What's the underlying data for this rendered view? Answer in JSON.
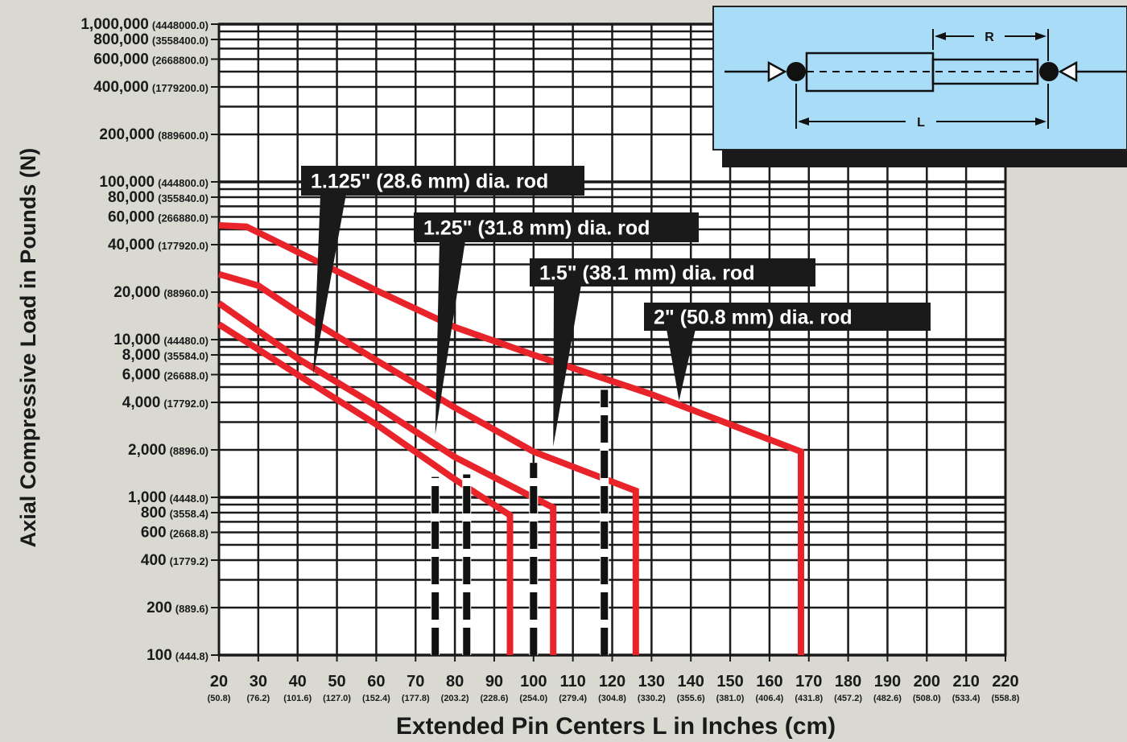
{
  "chart_data": {
    "type": "line",
    "title": "",
    "xlabel": "Extended Pin Centers L in Inches (cm)",
    "ylabel": "Axial Compressive Load in Pounds (N)",
    "xlim": [
      20,
      220
    ],
    "ylim": [
      100,
      1000000
    ],
    "y_scale": "log",
    "grid": true,
    "legend": "labels on callouts",
    "x_ticks": [
      {
        "value": 20,
        "label": "20",
        "sub": "(50.8)"
      },
      {
        "value": 30,
        "label": "30",
        "sub": "(76.2)"
      },
      {
        "value": 40,
        "label": "40",
        "sub": "(101.6)"
      },
      {
        "value": 50,
        "label": "50",
        "sub": "(127.0)"
      },
      {
        "value": 60,
        "label": "60",
        "sub": "(152.4)"
      },
      {
        "value": 70,
        "label": "70",
        "sub": "(177.8)"
      },
      {
        "value": 80,
        "label": "80",
        "sub": "(203.2)"
      },
      {
        "value": 90,
        "label": "90",
        "sub": "(228.6)"
      },
      {
        "value": 100,
        "label": "100",
        "sub": "(254.0)"
      },
      {
        "value": 110,
        "label": "110",
        "sub": "(279.4)"
      },
      {
        "value": 120,
        "label": "120",
        "sub": "(304.8)"
      },
      {
        "value": 130,
        "label": "130",
        "sub": "(330.2)"
      },
      {
        "value": 140,
        "label": "140",
        "sub": "(355.6)"
      },
      {
        "value": 150,
        "label": "150",
        "sub": "(381.0)"
      },
      {
        "value": 160,
        "label": "160",
        "sub": "(406.4)"
      },
      {
        "value": 170,
        "label": "170",
        "sub": "(431.8)"
      },
      {
        "value": 180,
        "label": "180",
        "sub": "(457.2)"
      },
      {
        "value": 190,
        "label": "190",
        "sub": "(482.6)"
      },
      {
        "value": 200,
        "label": "200",
        "sub": "(508.0)"
      },
      {
        "value": 210,
        "label": "210",
        "sub": "(533.4)"
      },
      {
        "value": 220,
        "label": "220",
        "sub": "(558.8)"
      }
    ],
    "y_ticks": [
      {
        "value": 1000000,
        "label": "1,000,000",
        "sub": "(4448000.0)"
      },
      {
        "value": 800000,
        "label": "800,000",
        "sub": "(3558400.0)"
      },
      {
        "value": 600000,
        "label": "600,000",
        "sub": "(2668800.0)"
      },
      {
        "value": 400000,
        "label": "400,000",
        "sub": "(1779200.0)"
      },
      {
        "value": 200000,
        "label": "200,000",
        "sub": "(889600.0)"
      },
      {
        "value": 100000,
        "label": "100,000",
        "sub": "(444800.0)"
      },
      {
        "value": 80000,
        "label": "80,000",
        "sub": "(355840.0)"
      },
      {
        "value": 60000,
        "label": "60,000",
        "sub": "(266880.0)"
      },
      {
        "value": 40000,
        "label": "40,000",
        "sub": "(177920.0)"
      },
      {
        "value": 20000,
        "label": "20,000",
        "sub": "(88960.0)"
      },
      {
        "value": 10000,
        "label": "10,000",
        "sub": "(44480.0)"
      },
      {
        "value": 8000,
        "label": "8,000",
        "sub": "(35584.0)"
      },
      {
        "value": 6000,
        "label": "6,000",
        "sub": "(26688.0)"
      },
      {
        "value": 4000,
        "label": "4,000",
        "sub": "(17792.0)"
      },
      {
        "value": 2000,
        "label": "2,000",
        "sub": "(8896.0)"
      },
      {
        "value": 1000,
        "label": "1,000",
        "sub": "(4448.0)"
      },
      {
        "value": 800,
        "label": "800",
        "sub": "(3558.4)"
      },
      {
        "value": 600,
        "label": "600",
        "sub": "(2668.8)"
      },
      {
        "value": 400,
        "label": "400",
        "sub": "(1779.2)"
      },
      {
        "value": 200,
        "label": "200",
        "sub": "(889.6)"
      },
      {
        "value": 100,
        "label": "100",
        "sub": "(444.8)"
      }
    ],
    "series": [
      {
        "name": "1.125\" (28.6 mm) dia. rod",
        "color": "#e8232a",
        "points": [
          [
            20,
            12500
          ],
          [
            40,
            6000
          ],
          [
            60,
            2900
          ],
          [
            80,
            1300
          ],
          [
            94,
            770
          ],
          [
            94,
            100
          ]
        ],
        "buckling_limit_x": 75
      },
      {
        "name": "1.25\" (31.8 mm) dia. rod",
        "color": "#e8232a",
        "points": [
          [
            20,
            17000
          ],
          [
            40,
            7600
          ],
          [
            60,
            3800
          ],
          [
            80,
            1800
          ],
          [
            105,
            860
          ],
          [
            105,
            100
          ]
        ],
        "buckling_limit_x": 83
      },
      {
        "name": "1.5\" (38.1 mm) dia. rod",
        "color": "#e8232a",
        "points": [
          [
            20,
            26000
          ],
          [
            30,
            22000
          ],
          [
            40,
            15000
          ],
          [
            60,
            7400
          ],
          [
            80,
            3700
          ],
          [
            100,
            1950
          ],
          [
            126,
            1100
          ],
          [
            126,
            100
          ]
        ],
        "buckling_limit_x": 100
      },
      {
        "name": "2\" (50.8 mm) dia. rod",
        "color": "#e8232a",
        "points": [
          [
            20,
            53000
          ],
          [
            27,
            52000
          ],
          [
            40,
            36000
          ],
          [
            60,
            20500
          ],
          [
            80,
            12000
          ],
          [
            100,
            8000
          ],
          [
            130,
            4500
          ],
          [
            150,
            2900
          ],
          [
            168,
            1950
          ],
          [
            168,
            100
          ]
        ],
        "buckling_limit_x": 118
      }
    ],
    "annotations": [
      {
        "text": "1.125\" (28.6 mm) dia. rod",
        "points_to": [
          44,
          6000
        ]
      },
      {
        "text": "1.25\" (31.8 mm) dia. rod",
        "points_to": [
          75,
          2500
        ]
      },
      {
        "text": "1.5\" (38.1 mm) dia. rod",
        "points_to": [
          105,
          2100
        ]
      },
      {
        "text": "2\" (50.8 mm) dia. rod",
        "points_to": [
          137,
          4100
        ]
      }
    ]
  },
  "diagram": {
    "label_r": "R",
    "label_l": "L",
    "background": "#a8dcf7"
  }
}
